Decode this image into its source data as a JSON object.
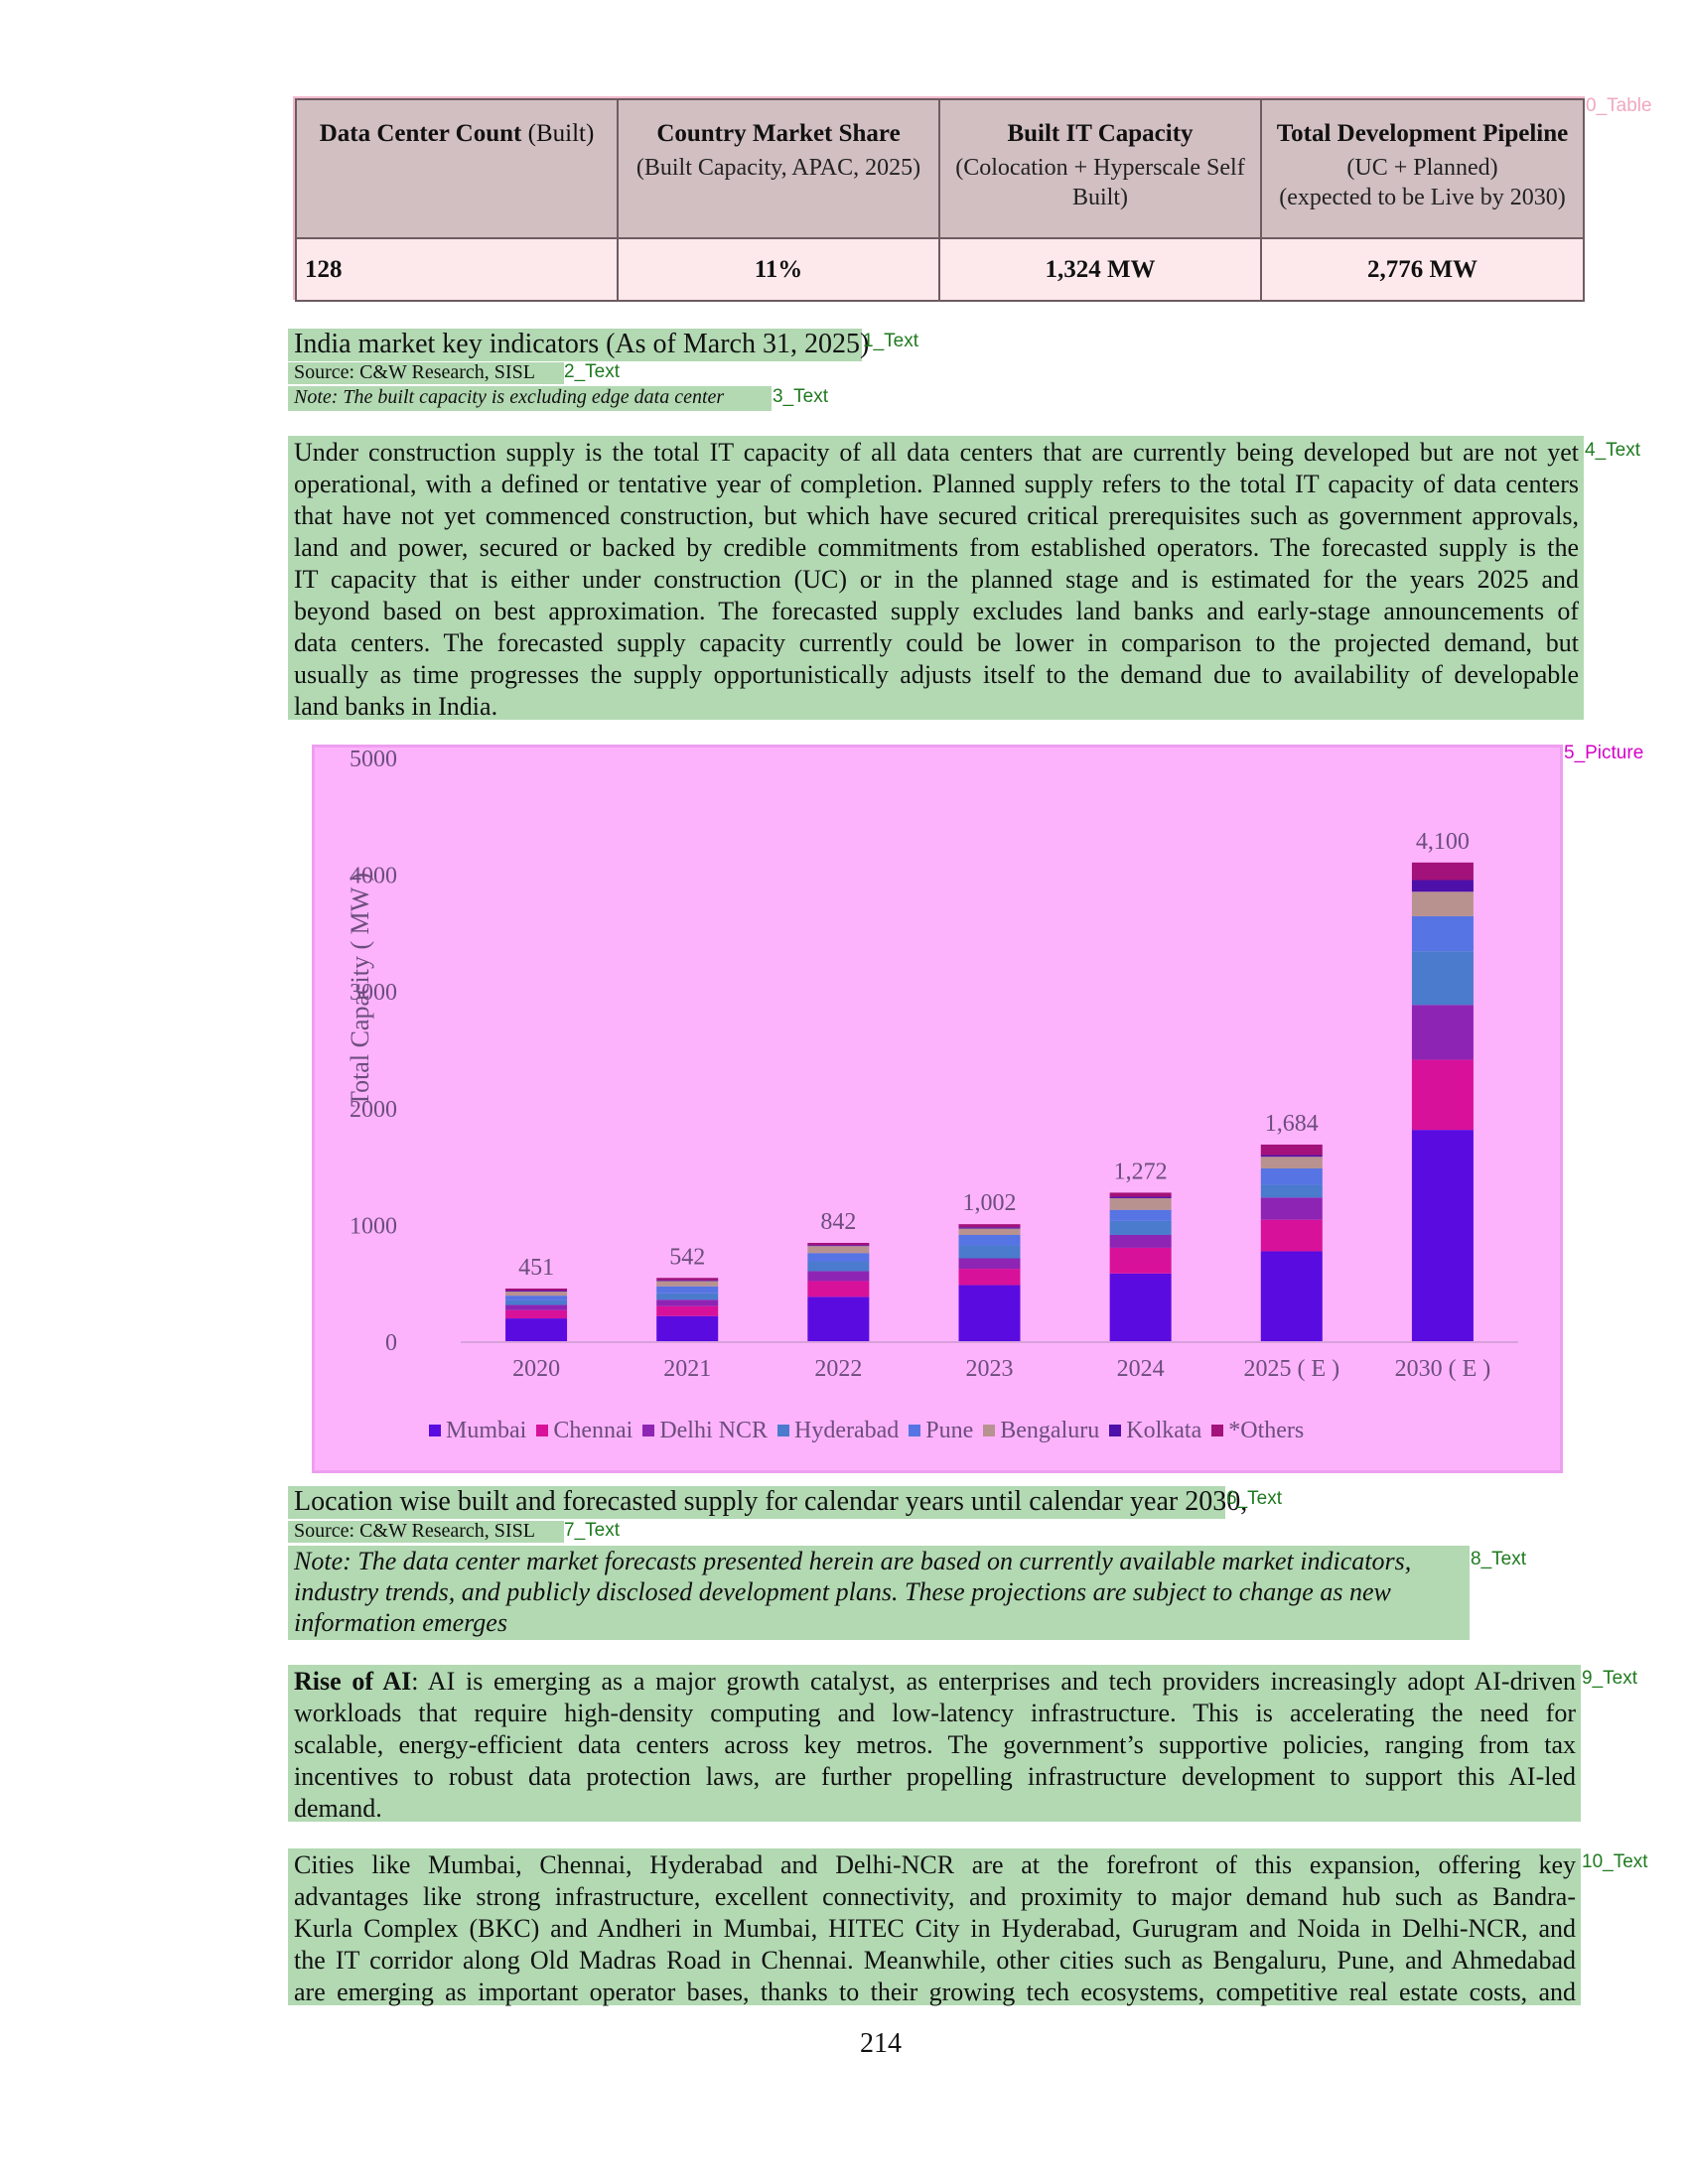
{
  "layout_labels": {
    "table": "0_Table",
    "text1": "1_Text",
    "text2": "2_Text",
    "text3": "3_Text",
    "text4": "4_Text",
    "picture5": "5_Picture",
    "text6": "6_Text",
    "text7": "7_Text",
    "text8": "8_Text",
    "text9": "9_Text",
    "text10": "10_Text"
  },
  "table": {
    "headers": [
      {
        "main": "Data Center Count",
        "suffix": " (Built)",
        "sub": []
      },
      {
        "main": "Country Market Share",
        "suffix": "",
        "sub": [
          "(Built Capacity, APAC, 2025)"
        ]
      },
      {
        "main": "Built IT Capacity",
        "suffix": "",
        "sub": [
          "(Colocation + Hyperscale Self",
          "Built)"
        ]
      },
      {
        "main": "Total Development Pipeline",
        "suffix": "",
        "sub": [
          "(UC + Planned)",
          "(expected to be Live by 2030)"
        ]
      }
    ],
    "values": [
      "128",
      "11%",
      "1,324 MW",
      "2,776 MW"
    ]
  },
  "caption1": {
    "title": "India market key indicators (As of March 31, 2025)",
    "source": "Source: C&W Research, SISL",
    "note": "Note: The built capacity is excluding edge data center"
  },
  "paragraph4": [
    "Under construction supply is the total IT capacity of all data centers that are currently being developed but are not yet",
    "operational, with a defined or tentative year of completion. Planned supply refers to the total IT capacity of data centers",
    "that have not yet commenced construction, but which have secured critical prerequisites such as government approvals,",
    "land and power, secured or backed by credible commitments from established operators. The forecasted supply is the",
    "IT capacity that is either under construction (UC) or in the planned stage and is estimated for the years 2025 and",
    "beyond based on best approximation. The forecasted supply excludes land banks and early-stage announcements of",
    "data centers. The forecasted supply capacity currently could be lower in comparison to the projected demand, but",
    "usually as time progresses the supply opportunistically adjusts itself to the demand due to availability of developable",
    "land banks in India."
  ],
  "chart_data": {
    "type": "bar",
    "stacked": true,
    "categories": [
      "2020",
      "2021",
      "2022",
      "2023",
      "2024",
      "2025 ( E )",
      "2030 ( E )"
    ],
    "totals": [
      451,
      542,
      842,
      1002,
      1272,
      1684,
      4100
    ],
    "total_labels": [
      "451",
      "542",
      "842",
      "1,002",
      "1,272",
      "1,684",
      "4,100"
    ],
    "ylabel": "Total Capacity ( MW )",
    "ylim": [
      0,
      5000
    ],
    "yticks": [
      0,
      1000,
      2000,
      3000,
      4000,
      5000
    ],
    "legend_position": "bottom",
    "series": [
      {
        "name": "Mumbai",
        "color": "#5a0be0",
        "values": [
          195,
          215,
          380,
          480,
          580,
          770,
          1810
        ]
      },
      {
        "name": "Chennai",
        "color": "#d8119a",
        "values": [
          70,
          85,
          135,
          140,
          220,
          270,
          600
        ]
      },
      {
        "name": "Delhi NCR",
        "color": "#8e24b4",
        "values": [
          45,
          55,
          85,
          90,
          110,
          190,
          470
        ]
      },
      {
        "name": "Hyderabad",
        "color": "#4a7bcd",
        "values": [
          40,
          55,
          80,
          110,
          120,
          110,
          460
        ]
      },
      {
        "name": "Pune",
        "color": "#5674e3",
        "values": [
          40,
          60,
          75,
          90,
          95,
          140,
          300
        ]
      },
      {
        "name": "Bengaluru",
        "color": "#b8928f",
        "values": [
          35,
          45,
          60,
          55,
          100,
          100,
          210
        ]
      },
      {
        "name": "Kolkata",
        "color": "#4d10a8",
        "values": [
          8,
          7,
          7,
          11,
          12,
          14,
          100
        ]
      },
      {
        "name": "*Others",
        "color": "#a3117a",
        "values": [
          18,
          20,
          20,
          26,
          35,
          90,
          150
        ]
      }
    ]
  },
  "caption2": {
    "title": "Location wise built and forecasted supply for calendar years until calendar year 2030,",
    "source": "Source: C&W Research, SISL",
    "note_lines": [
      "Note: The data center market forecasts presented herein are based on currently available market indicators,",
      "industry trends, and publicly disclosed development plans. These projections are subject to change as new",
      "information emerges"
    ]
  },
  "paragraph9": {
    "lead": "Rise of AI",
    "lines": [
      ": AI is emerging as a major growth catalyst, as enterprises and tech providers increasingly adopt AI-driven",
      "workloads that require high-density computing and low-latency infrastructure. This is accelerating the need for",
      "scalable, energy-efficient data centers across key metros. The government’s supportive policies, ranging from tax",
      "incentives to robust data protection laws, are further propelling infrastructure development to support this AI-led",
      "demand."
    ]
  },
  "paragraph10": [
    "Cities like Mumbai, Chennai, Hyderabad and Delhi-NCR are at the forefront of this expansion, offering key",
    "advantages like strong infrastructure, excellent connectivity, and proximity to major demand hub such as Bandra-",
    "Kurla Complex (BKC) and Andheri in Mumbai, HITEC City in Hyderabad, Gurugram and Noida in Delhi-NCR, and",
    "the IT corridor along Old Madras Road in Chennai. Meanwhile, other cities such as Bengaluru, Pune, and Ahmedabad",
    "are emerging as important operator bases, thanks to their growing tech ecosystems, competitive real estate costs, and"
  ],
  "page_number": "214"
}
